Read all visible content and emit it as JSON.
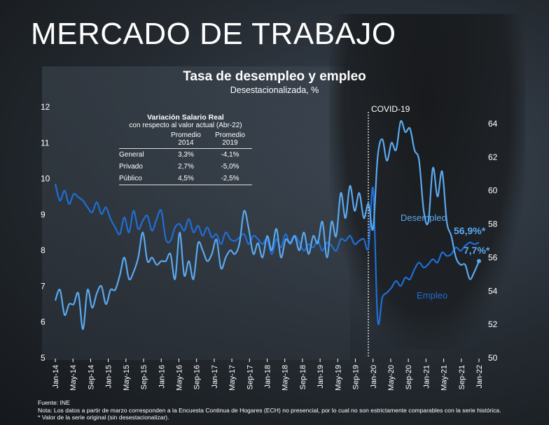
{
  "header": {
    "title": "MERCADO DE TRABAJO"
  },
  "chart_data": {
    "type": "line",
    "title": "Tasa de desempleo y empleo",
    "subtitle": "Desestacionalizada, %",
    "annotation": "COVID-19",
    "grid": false,
    "left_axis": {
      "ticks": [
        "12",
        "11",
        "10",
        "9",
        "8",
        "7",
        "6",
        "5"
      ],
      "ylim": [
        5,
        12
      ]
    },
    "right_axis": {
      "ticks": [
        "64",
        "62",
        "60",
        "58",
        "56",
        "54",
        "52",
        "50"
      ],
      "ylim": [
        50,
        65
      ]
    },
    "x_ticks": [
      "Jan-14",
      "May-14",
      "Sep-14",
      "Jan-15",
      "May-15",
      "Sep-15",
      "Jan-16",
      "May-16",
      "Sep-16",
      "Jan-17",
      "May-17",
      "Sep-17",
      "Jan-18",
      "May-18",
      "Sep-18",
      "Jan-19",
      "May-19",
      "Sep-19",
      "Jan-20",
      "May-20",
      "Sep-20",
      "Jan-21",
      "May-21",
      "Sep-21",
      "Jan-22"
    ],
    "series": [
      {
        "name": "Desempleo",
        "axis": "left",
        "color": "#5aa9f0",
        "end_label": "7,7%*",
        "values": [
          6.6,
          6.9,
          6.2,
          6.5,
          6.5,
          6.8,
          5.8,
          6.9,
          6.4,
          6.8,
          7.0,
          6.5,
          6.9,
          6.9,
          7.3,
          7.8,
          7.2,
          7.4,
          7.8,
          8.5,
          7.7,
          7.8,
          7.6,
          7.7,
          7.7,
          7.9,
          7.2,
          8.5,
          7.3,
          7.7,
          7.2,
          8.2,
          8.0,
          7.7,
          7.9,
          8.3,
          7.5,
          7.8,
          8.0,
          7.9,
          8.2,
          9.1,
          8.6,
          7.9,
          8.2,
          7.8,
          8.4,
          8.0,
          8.6,
          7.8,
          8.3,
          8.2,
          8.4,
          8.0,
          8.5,
          7.9,
          8.4,
          8.2,
          8.8,
          7.8,
          8.8,
          8.4,
          9.6,
          8.9,
          9.8,
          9.1,
          9.6,
          8.9,
          9.3,
          8.6,
          10.6,
          11.1,
          10.5,
          11.0,
          10.8,
          11.6,
          11.3,
          11.4,
          10.8,
          10.5,
          9.1,
          8.8,
          10.3,
          9.5,
          10.2,
          8.8,
          8.4,
          7.8,
          7.6,
          7.6,
          7.2,
          7.4,
          7.7
        ]
      },
      {
        "name": "Empleo",
        "axis": "right",
        "color": "#1f6fd6",
        "end_label": "56,9%*",
        "values": [
          60.4,
          59.4,
          60.0,
          59.2,
          59.8,
          59.6,
          59.4,
          59.0,
          58.7,
          59.3,
          58.6,
          59.0,
          58.3,
          57.8,
          57.4,
          58.4,
          57.5,
          58.8,
          57.7,
          58.2,
          58.5,
          57.6,
          58.3,
          58.8,
          57.1,
          57.0,
          57.8,
          58.0,
          57.6,
          58.3,
          57.5,
          57.9,
          57.3,
          57.8,
          57.2,
          57.4,
          56.8,
          57.5,
          57.1,
          57.0,
          57.2,
          57.4,
          56.8,
          57.3,
          57.1,
          56.8,
          57.1,
          56.2,
          57.1,
          56.6,
          57.4,
          56.8,
          57.3,
          56.9,
          56.4,
          56.8,
          56.6,
          57.0,
          56.4,
          56.9,
          56.7,
          56.4,
          57.1,
          57.0,
          57.3,
          56.8,
          57.0,
          57.1,
          56.6,
          60.1,
          52.3,
          53.6,
          53.9,
          54.2,
          54.6,
          54.3,
          54.8,
          54.7,
          55.3,
          55.7,
          55.4,
          55.6,
          55.9,
          55.7,
          56.3,
          56.1,
          56.2,
          56.6,
          56.4,
          56.7,
          56.9,
          56.8,
          56.9
        ]
      }
    ]
  },
  "table": {
    "title": "Variación Salario Real",
    "subtitle": "con respecto al valor actual (Abr-22)",
    "columns": [
      "Promedio 2014",
      "Promedio 2019"
    ],
    "rows": [
      {
        "label": "General",
        "v2014": "3,3%",
        "v2019": "-4,1%"
      },
      {
        "label": "Privado",
        "v2014": "2,7%",
        "v2019": "-5,0%"
      },
      {
        "label": "Público",
        "v2014": "4,5%",
        "v2019": "-2,5%"
      }
    ]
  },
  "footer": {
    "source": "Fuente: INE",
    "note": "Nota: Los datos a partir de marzo corresponden a la Encuesta Continua de Hogares (ECH) no presencial, por lo cual no son estrictamente comparables con la serie histórica.",
    "note2": "* Valor de la serie original (sin desestacionalizar)."
  }
}
